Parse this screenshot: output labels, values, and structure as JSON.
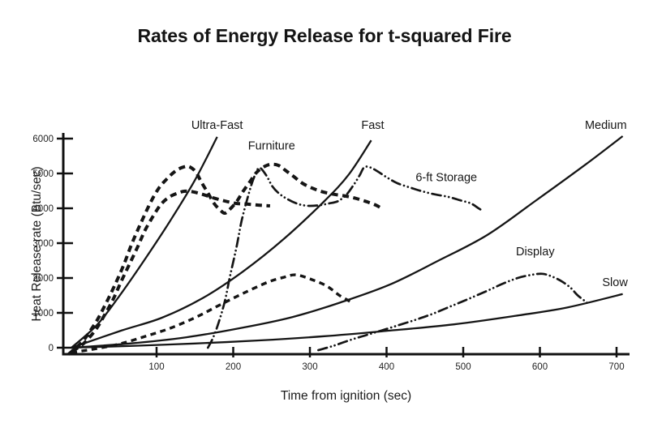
{
  "title": "Rates of Energy Release for t-squared Fire",
  "chart_data": {
    "type": "line",
    "title": "Rates of Energy Release for t-squared Fire",
    "xlabel": "Time from ignition (sec)",
    "ylabel": "Heat Release rate (Btu/sec)",
    "xlim": [
      -20,
      715
    ],
    "ylim": [
      -300,
      6200
    ],
    "x_ticks": [
      100,
      200,
      300,
      400,
      500,
      600,
      700
    ],
    "y_ticks": [
      0,
      1000,
      2000,
      3000,
      4000,
      5000,
      6000
    ],
    "grid": false,
    "axis_color": "#111111",
    "line_color": "#151515",
    "legend": "inline-labels",
    "series": [
      {
        "id": "ultra-fast",
        "label": "Ultra-Fast",
        "style": "solid",
        "label_anchor": [
          179,
          6400
        ],
        "points": [
          [
            -11,
            0
          ],
          [
            23,
            670
          ],
          [
            54,
            1560
          ],
          [
            86,
            2580
          ],
          [
            118,
            3650
          ],
          [
            150,
            4810
          ],
          [
            179,
            6050
          ]
        ]
      },
      {
        "id": "fast",
        "label": "Fast",
        "style": "solid",
        "label_anchor": [
          382,
          6400
        ],
        "points": [
          [
            -11,
            0
          ],
          [
            54,
            490
          ],
          [
            107,
            860
          ],
          [
            160,
            1420
          ],
          [
            213,
            2190
          ],
          [
            266,
            3120
          ],
          [
            319,
            4210
          ],
          [
            351,
            4980
          ],
          [
            380,
            5950
          ]
        ]
      },
      {
        "id": "medium",
        "label": "Medium",
        "style": "solid",
        "label_anchor": [
          686,
          6400
        ],
        "points": [
          [
            -11,
            0
          ],
          [
            65,
            120
          ],
          [
            139,
            300
          ],
          [
            213,
            580
          ],
          [
            277,
            880
          ],
          [
            340,
            1300
          ],
          [
            404,
            1810
          ],
          [
            467,
            2490
          ],
          [
            531,
            3230
          ],
          [
            594,
            4210
          ],
          [
            658,
            5230
          ],
          [
            708,
            6070
          ]
        ]
      },
      {
        "id": "slow",
        "label": "Slow",
        "style": "solid",
        "label_anchor": [
          698,
          1880
        ],
        "points": [
          [
            -11,
            0
          ],
          [
            65,
            50
          ],
          [
            150,
            120
          ],
          [
            234,
            210
          ],
          [
            319,
            330
          ],
          [
            404,
            490
          ],
          [
            488,
            670
          ],
          [
            573,
            930
          ],
          [
            637,
            1160
          ],
          [
            708,
            1540
          ]
        ]
      },
      {
        "id": "furniture",
        "label": "Furniture",
        "style": "dashed-heavy",
        "label_anchor": [
          250,
          5800
        ],
        "points": [
          [
            -15,
            -190
          ],
          [
            -6,
            -20
          ],
          [
            4,
            190
          ],
          [
            13,
            470
          ],
          [
            23,
            810
          ],
          [
            33,
            1230
          ],
          [
            45,
            1770
          ],
          [
            57,
            2370
          ],
          [
            68,
            3000
          ],
          [
            80,
            3600
          ],
          [
            92,
            4160
          ],
          [
            103,
            4580
          ],
          [
            115,
            4880
          ],
          [
            126,
            5090
          ],
          [
            136,
            5190
          ],
          [
            143,
            5190
          ],
          [
            151,
            5050
          ],
          [
            158,
            4770
          ],
          [
            167,
            4440
          ],
          [
            175,
            4140
          ],
          [
            183,
            3950
          ],
          [
            189,
            3860
          ],
          [
            196,
            3980
          ],
          [
            205,
            4210
          ],
          [
            213,
            4490
          ],
          [
            222,
            4770
          ],
          [
            230,
            5020
          ],
          [
            240,
            5190
          ],
          [
            249,
            5260
          ],
          [
            259,
            5230
          ],
          [
            268,
            5090
          ],
          [
            279,
            4910
          ],
          [
            290,
            4720
          ],
          [
            303,
            4580
          ],
          [
            317,
            4470
          ],
          [
            332,
            4400
          ],
          [
            347,
            4350
          ],
          [
            361,
            4280
          ],
          [
            374,
            4190
          ],
          [
            386,
            4090
          ],
          [
            395,
            3980
          ]
        ]
      },
      {
        "id": "storage-6ft",
        "label": "6-ft Storage",
        "style": "dash-dot-dot",
        "label_anchor": [
          478,
          4900
        ],
        "points": [
          [
            167,
            0
          ],
          [
            174,
            300
          ],
          [
            181,
            720
          ],
          [
            189,
            1330
          ],
          [
            196,
            2070
          ],
          [
            204,
            2860
          ],
          [
            211,
            3650
          ],
          [
            220,
            4400
          ],
          [
            227,
            4880
          ],
          [
            234,
            5160
          ],
          [
            243,
            4950
          ],
          [
            251,
            4630
          ],
          [
            260,
            4420
          ],
          [
            271,
            4260
          ],
          [
            285,
            4120
          ],
          [
            299,
            4070
          ],
          [
            313,
            4090
          ],
          [
            325,
            4140
          ],
          [
            337,
            4210
          ],
          [
            348,
            4400
          ],
          [
            357,
            4670
          ],
          [
            365,
            4950
          ],
          [
            371,
            5180
          ],
          [
            379,
            5170
          ],
          [
            389,
            5050
          ],
          [
            401,
            4880
          ],
          [
            414,
            4720
          ],
          [
            430,
            4600
          ],
          [
            446,
            4490
          ],
          [
            463,
            4400
          ],
          [
            480,
            4330
          ],
          [
            496,
            4230
          ],
          [
            510,
            4140
          ],
          [
            520,
            4000
          ],
          [
            525,
            3930
          ]
        ]
      },
      {
        "id": "display",
        "label": "Display",
        "style": "dash-dot-dot",
        "label_anchor": [
          594,
          2770
        ],
        "points": [
          [
            311,
            -70
          ],
          [
            330,
            50
          ],
          [
            351,
            210
          ],
          [
            372,
            350
          ],
          [
            393,
            490
          ],
          [
            416,
            650
          ],
          [
            439,
            810
          ],
          [
            461,
            980
          ],
          [
            484,
            1190
          ],
          [
            507,
            1400
          ],
          [
            531,
            1630
          ],
          [
            552,
            1840
          ],
          [
            571,
            2000
          ],
          [
            589,
            2090
          ],
          [
            603,
            2120
          ],
          [
            615,
            2050
          ],
          [
            628,
            1910
          ],
          [
            640,
            1720
          ],
          [
            649,
            1510
          ],
          [
            658,
            1350
          ],
          [
            663,
            1260
          ]
        ]
      },
      {
        "id": "unlabeled-dashed-a",
        "label": null,
        "style": "dashed-heavy",
        "label_anchor": null,
        "points": [
          [
            -10,
            -90
          ],
          [
            1,
            50
          ],
          [
            11,
            260
          ],
          [
            22,
            560
          ],
          [
            32,
            930
          ],
          [
            43,
            1370
          ],
          [
            53,
            1860
          ],
          [
            64,
            2370
          ],
          [
            75,
            2880
          ],
          [
            85,
            3370
          ],
          [
            96,
            3790
          ],
          [
            106,
            4120
          ],
          [
            117,
            4330
          ],
          [
            128,
            4440
          ],
          [
            137,
            4490
          ],
          [
            148,
            4470
          ],
          [
            160,
            4400
          ],
          [
            174,
            4300
          ],
          [
            189,
            4210
          ],
          [
            204,
            4140
          ],
          [
            218,
            4120
          ],
          [
            233,
            4090
          ],
          [
            248,
            4070
          ]
        ]
      },
      {
        "id": "unlabeled-dashed-b",
        "label": null,
        "style": "dashed-medium",
        "label_anchor": null,
        "points": [
          [
            -11,
            -140
          ],
          [
            23,
            -20
          ],
          [
            54,
            120
          ],
          [
            86,
            330
          ],
          [
            118,
            560
          ],
          [
            150,
            860
          ],
          [
            181,
            1210
          ],
          [
            213,
            1560
          ],
          [
            245,
            1880
          ],
          [
            266,
            2020
          ],
          [
            282,
            2090
          ],
          [
            303,
            1950
          ],
          [
            322,
            1770
          ],
          [
            338,
            1510
          ],
          [
            349,
            1370
          ],
          [
            355,
            1280
          ]
        ]
      }
    ]
  }
}
